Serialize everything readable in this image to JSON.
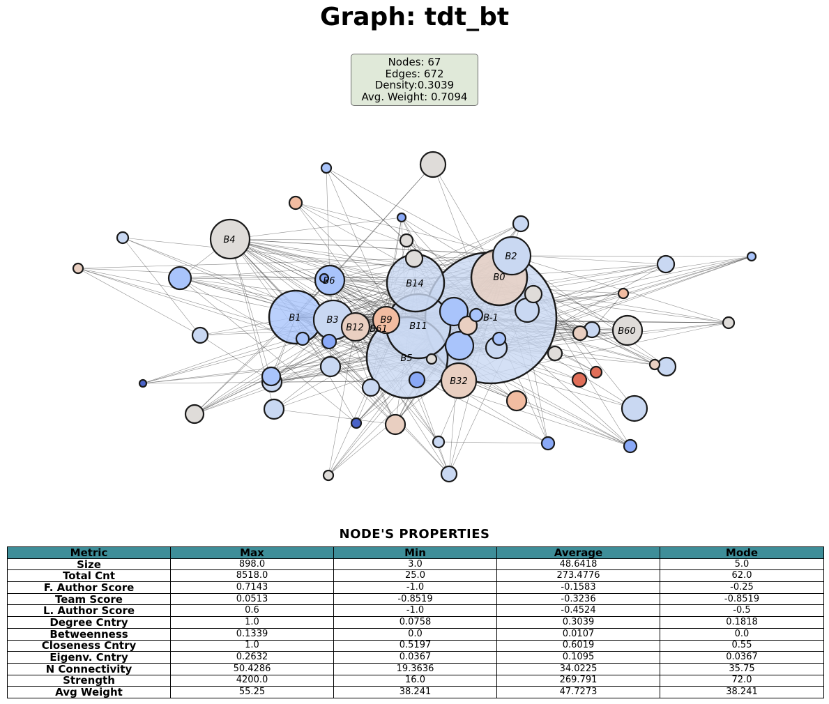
{
  "title": "Graph: tdt_bt",
  "stats": {
    "nodes": "Nodes: 67",
    "edges": "Edges: 672",
    "density": "Density:0.3039",
    "avg_weight": "Avg. Weight: 0.7094"
  },
  "graph": {
    "labels": {
      "B4": "B4",
      "B6": "B6",
      "B1": "B1",
      "B3": "B3",
      "B12": "B12",
      "B9": "B9",
      "B61": "B61",
      "B14": "B14",
      "B11": "B11",
      "B5": "B5",
      "B2": "B2",
      "B0": "B0",
      "Bm1": "B-1",
      "B32": "B32",
      "B60": "B60"
    }
  },
  "colors": {
    "blue_dark": "#4a63c8",
    "blue_mid": "#8aa9f7",
    "blue_light": "#a9c4fb",
    "blue_pale": "#c9d8f2",
    "neutral": "#dfdcd9",
    "warm_pale": "#e9cfc1",
    "warm": "#f2bca1",
    "red": "#e06e58",
    "header": "#3e8e99",
    "stats_box": "#e0e9d9"
  },
  "table": {
    "title": "NODE'S PROPERTIES",
    "headers": [
      "Metric",
      "Max",
      "Min",
      "Average",
      "Mode"
    ],
    "rows": [
      [
        "Size",
        "898.0",
        "3.0",
        "48.6418",
        "5.0"
      ],
      [
        "Total Cnt",
        "8518.0",
        "25.0",
        "273.4776",
        "62.0"
      ],
      [
        "F. Author Score",
        "0.7143",
        "-1.0",
        "-0.1583",
        "-0.25"
      ],
      [
        "Team Score",
        "0.0513",
        "-0.8519",
        "-0.3236",
        "-0.8519"
      ],
      [
        "L. Author Score",
        "0.6",
        "-1.0",
        "-0.4524",
        "-0.5"
      ],
      [
        "Degree Cntry",
        "1.0",
        "0.0758",
        "0.3039",
        "0.1818"
      ],
      [
        "Betweenness",
        "0.1339",
        "0.0",
        "0.0107",
        "0.0"
      ],
      [
        "Closeness Cntry",
        "1.0",
        "0.5197",
        "0.6019",
        "0.55"
      ],
      [
        "Eigenv. Cntry",
        "0.2632",
        "0.0367",
        "0.1095",
        "0.0367"
      ],
      [
        "N Connectivity",
        "50.4286",
        "19.3636",
        "34.0225",
        "35.75"
      ],
      [
        "Strength",
        "4200.0",
        "16.0",
        "269.791",
        "72.0"
      ],
      [
        "Avg Weight",
        "55.25",
        "38.241",
        "47.7273",
        "38.241"
      ]
    ]
  }
}
